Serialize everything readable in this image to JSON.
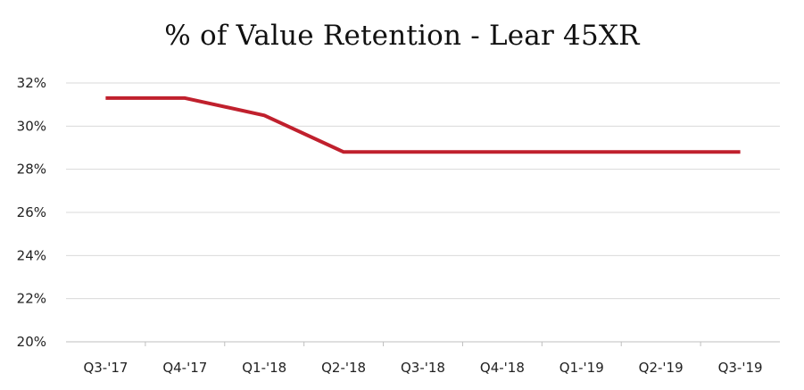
{
  "chart_data": {
    "type": "line",
    "title": "% of Value Retention - Lear 45XR",
    "xlabel": "",
    "ylabel": "",
    "categories": [
      "Q3-'17",
      "Q4-'17",
      "Q1-'18",
      "Q2-'18",
      "Q3-'18",
      "Q4-'18",
      "Q1-'19",
      "Q2-'19",
      "Q3-'19"
    ],
    "series": [
      {
        "values": [
          31.3,
          31.3,
          30.5,
          28.8,
          28.8,
          28.8,
          28.8,
          28.8,
          28.8
        ],
        "color": "#c0202d"
      }
    ],
    "ylim": [
      20,
      32
    ],
    "yticks": [
      20,
      22,
      24,
      26,
      28,
      30,
      32
    ],
    "ytick_labels": [
      "20%",
      "22%",
      "24%",
      "26%",
      "28%",
      "30%",
      "32%"
    ],
    "grid": true,
    "legend": "none",
    "gridline_color": "#d9d9d9"
  }
}
